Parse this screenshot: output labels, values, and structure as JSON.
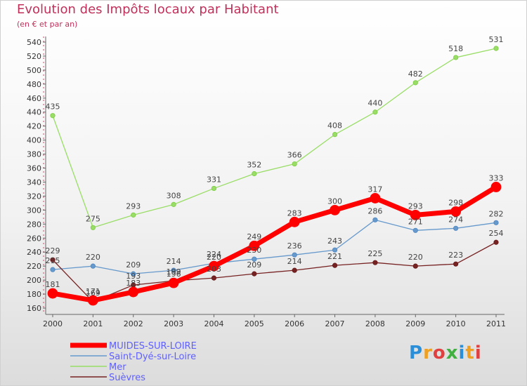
{
  "title": "Evolution des Impôts locaux par Habitant",
  "subtitle": "(en € et par an)",
  "logo": {
    "text": "Proxiti",
    "colors": [
      "#2a8fd8",
      "#f0a020",
      "#e04040",
      "#40b040",
      "#2a8fd8",
      "#f0a020",
      "#e04040"
    ]
  },
  "chart_data": {
    "type": "line",
    "title": "Evolution des Impôts locaux par Habitant",
    "subtitle": "(en € et par an)",
    "xlabel": "",
    "ylabel": "",
    "x": [
      "2000",
      "2001",
      "2002",
      "2003",
      "2004",
      "2005",
      "2006",
      "2007",
      "2008",
      "2009",
      "2010",
      "2011"
    ],
    "ylim": [
      160,
      540
    ],
    "yticks": [
      "160",
      "180",
      "200",
      "220",
      "240",
      "260",
      "280",
      "300",
      "320",
      "340",
      "360",
      "380",
      "400",
      "420",
      "440",
      "460",
      "480",
      "500",
      "520",
      "540"
    ],
    "grid": false,
    "legend_position": "bottom-left",
    "series": [
      {
        "name": "MUIDES-SUR-LOIRE",
        "color": "#ff0000",
        "values": [
          181,
          171,
          183,
          196,
          220,
          249,
          283,
          300,
          317,
          293,
          298,
          333
        ]
      },
      {
        "name": "Saint-Dyé-sur-Loire",
        "color": "#6699cc",
        "values": [
          215,
          220,
          209,
          214,
          224,
          230,
          236,
          243,
          286,
          271,
          274,
          282
        ]
      },
      {
        "name": "Mer",
        "color": "#99dd66",
        "values": [
          435,
          275,
          293,
          308,
          331,
          352,
          366,
          408,
          440,
          482,
          518,
          531
        ]
      },
      {
        "name": "Suèvres",
        "color": "#772222",
        "values": [
          229,
          169,
          193,
          199,
          203,
          209,
          214,
          221,
          225,
          220,
          223,
          254
        ]
      }
    ]
  }
}
